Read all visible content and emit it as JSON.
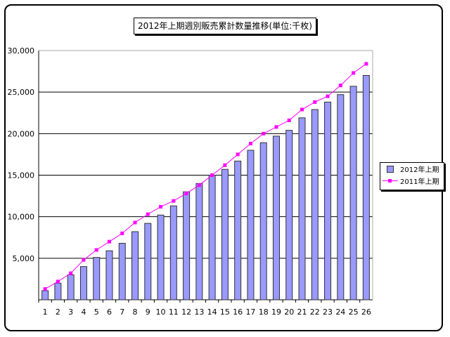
{
  "chart_data": {
    "type": "bar",
    "title": "2012年上期週別販売累計数量推移(単位:千枚)",
    "xlabel": "",
    "ylabel": "",
    "ylim": [
      0,
      30000
    ],
    "yticks": [
      "5,000",
      "10,000",
      "15,000",
      "20,000",
      "25,000",
      "30,000"
    ],
    "ytick_values": [
      5000,
      10000,
      15000,
      20000,
      25000,
      30000
    ],
    "categories": [
      "1",
      "2",
      "3",
      "4",
      "5",
      "6",
      "7",
      "8",
      "9",
      "10",
      "11",
      "12",
      "13",
      "14",
      "15",
      "16",
      "17",
      "18",
      "19",
      "20",
      "21",
      "22",
      "23",
      "24",
      "25",
      "26"
    ],
    "grid": true,
    "legend_position": "right",
    "series": [
      {
        "name": "2012年上期",
        "type": "bar",
        "color": "#9999ff",
        "values": [
          1100,
          2000,
          3000,
          4000,
          5100,
          5900,
          6800,
          8200,
          9200,
          10200,
          11300,
          13000,
          14000,
          15000,
          15700,
          16700,
          18000,
          18900,
          19700,
          20400,
          21900,
          22900,
          23800,
          24700,
          25700,
          27000
        ]
      },
      {
        "name": "2011年上期",
        "type": "line",
        "color": "#ff00ff",
        "values": [
          1300,
          2200,
          3200,
          4800,
          6000,
          7000,
          8000,
          9300,
          10300,
          11200,
          11900,
          12800,
          13800,
          15000,
          16200,
          17500,
          18800,
          20000,
          20800,
          21600,
          22900,
          23800,
          24500,
          25800,
          27300,
          28400
        ]
      }
    ]
  }
}
